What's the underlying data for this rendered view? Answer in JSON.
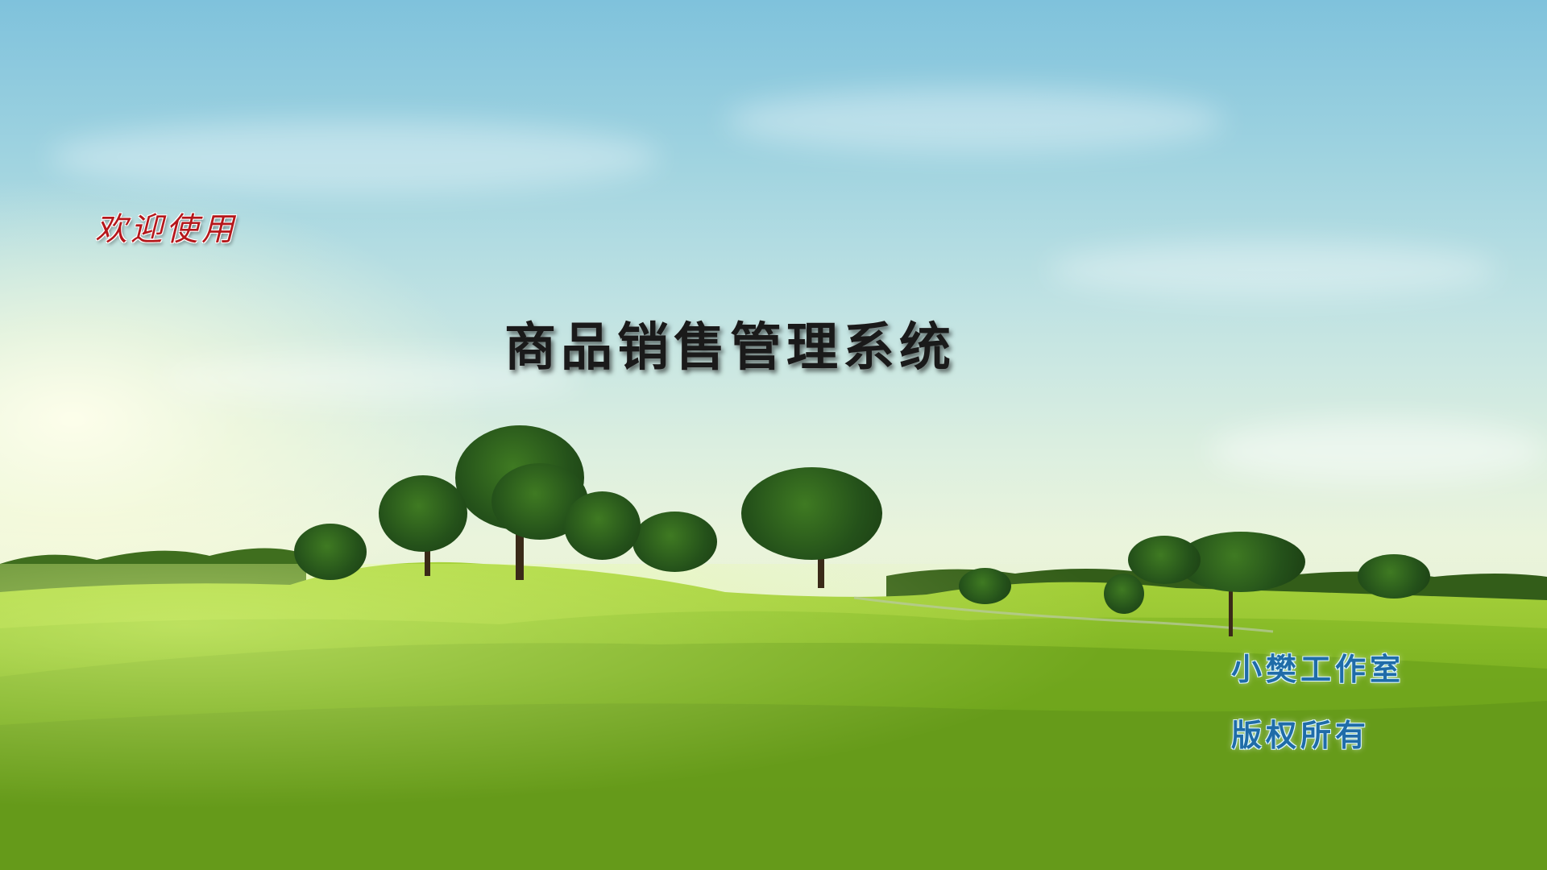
{
  "splash": {
    "welcome_text": "欢迎使用",
    "app_title": "商品销售管理系统",
    "studio_name": "小樊工作室",
    "copyright_text": "版权所有"
  },
  "background": {
    "sky_color": "#9fd3e0",
    "horizon_color": "#eaf4dc",
    "grass_color": "#6fa61e",
    "tree_color": "#24511a"
  },
  "colors": {
    "welcome_text": "#b5171b",
    "title_text": "#1a1a1a",
    "credit_text": "#1f6ca8"
  }
}
